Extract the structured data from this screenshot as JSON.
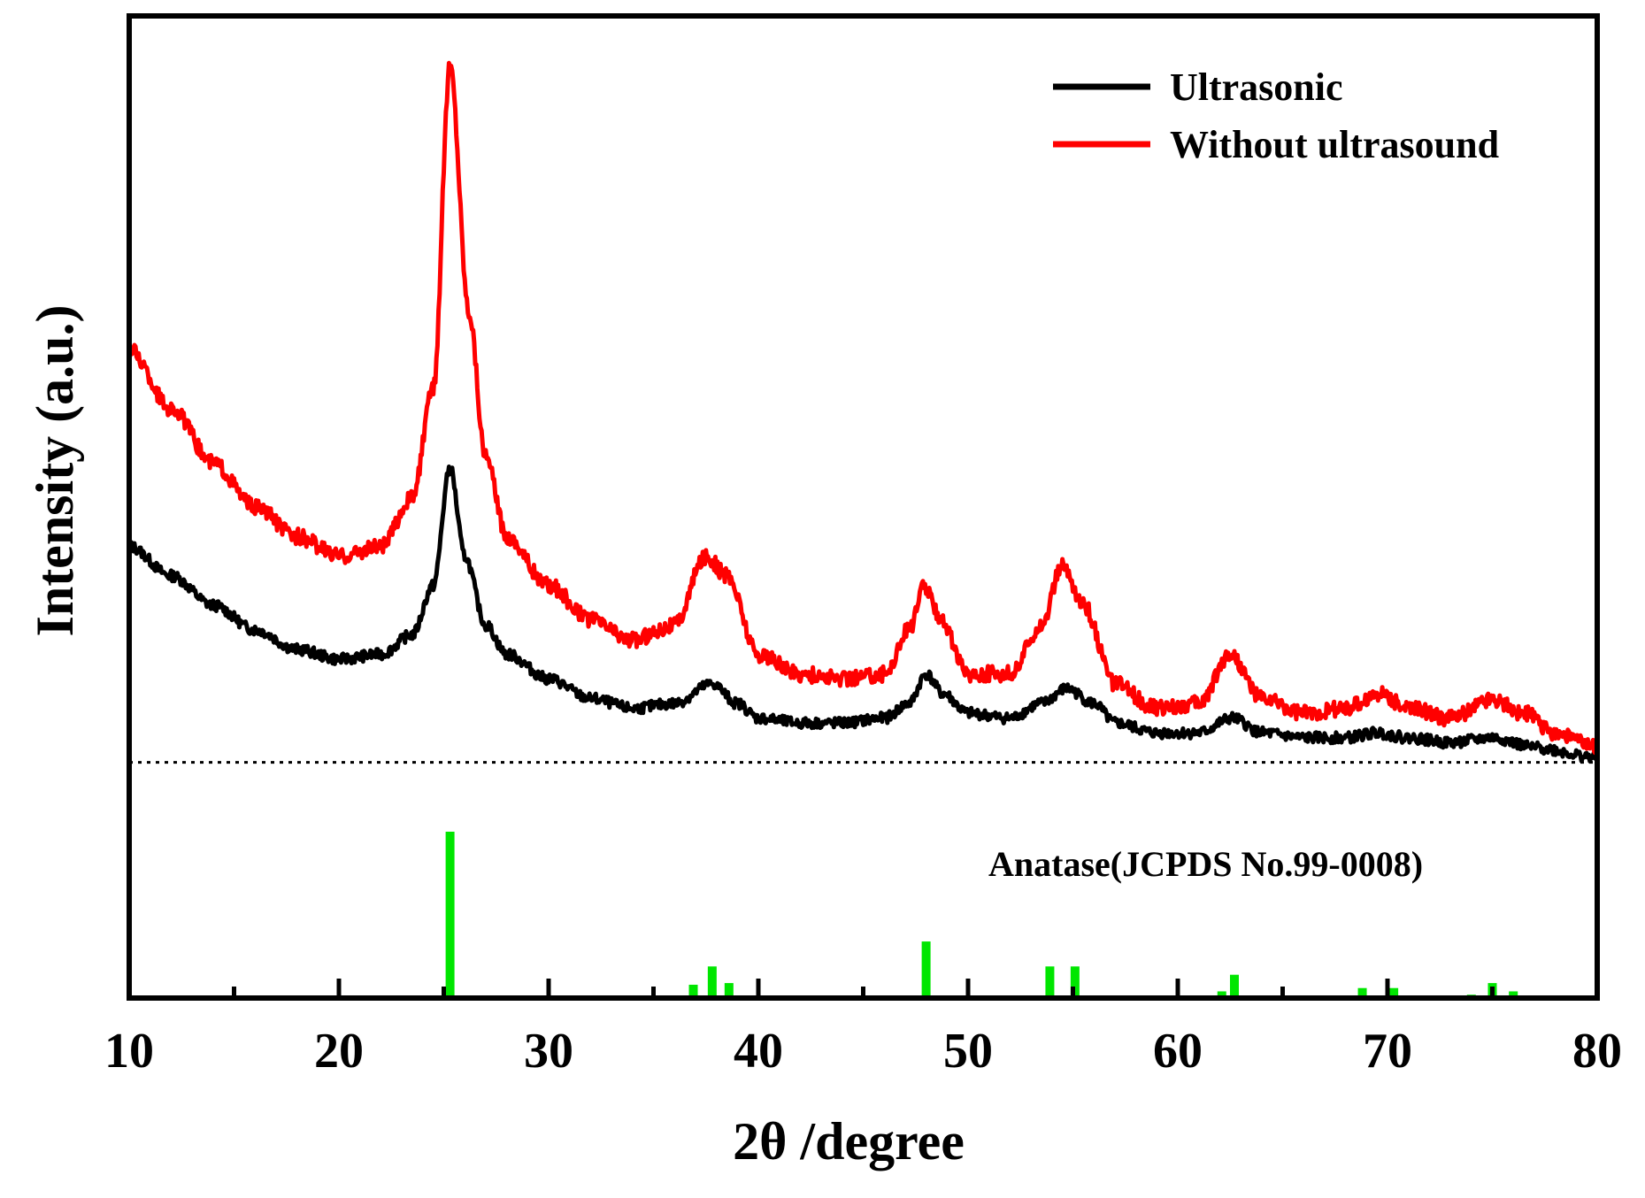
{
  "chart_data": {
    "type": "line",
    "title": "",
    "xlabel": "2θ /degree",
    "ylabel": "Intensity (a.u.)",
    "xlim": [
      10,
      80
    ],
    "ylim": [
      0,
      100
    ],
    "x_major_ticks": [
      10,
      20,
      30,
      40,
      50,
      60,
      70,
      80
    ],
    "x_minor_ticks": [
      15,
      25,
      35,
      45,
      55,
      65,
      75
    ],
    "legend_position": "top-right",
    "separator_level": 24,
    "series": [
      {
        "name": "Ultrasonic",
        "color": "#000000",
        "points": [
          [
            10,
            46
          ],
          [
            12,
            43
          ],
          [
            14,
            40
          ],
          [
            16,
            37.5
          ],
          [
            18,
            35.5
          ],
          [
            20,
            34.5
          ],
          [
            22,
            35
          ],
          [
            23.5,
            37
          ],
          [
            24.5,
            42
          ],
          [
            25.3,
            54
          ],
          [
            26,
            45
          ],
          [
            27,
            38
          ],
          [
            28,
            35
          ],
          [
            30,
            32.5
          ],
          [
            32,
            30.5
          ],
          [
            34,
            29.5
          ],
          [
            36,
            30
          ],
          [
            37.8,
            32
          ],
          [
            39,
            30
          ],
          [
            40,
            28.5
          ],
          [
            42,
            28
          ],
          [
            44,
            28
          ],
          [
            46,
            28.5
          ],
          [
            47.2,
            30
          ],
          [
            48,
            33
          ],
          [
            48.8,
            31
          ],
          [
            50,
            29
          ],
          [
            52,
            28.5
          ],
          [
            53.5,
            30
          ],
          [
            54.7,
            31.5
          ],
          [
            56,
            30
          ],
          [
            57,
            28
          ],
          [
            59,
            27
          ],
          [
            61,
            27
          ],
          [
            62.6,
            28.5
          ],
          [
            64,
            27
          ],
          [
            66,
            26.5
          ],
          [
            68,
            26.5
          ],
          [
            69.5,
            27
          ],
          [
            71,
            26.5
          ],
          [
            73,
            26
          ],
          [
            75,
            26.5
          ],
          [
            77,
            25.5
          ],
          [
            80,
            24.5
          ]
        ]
      },
      {
        "name": "Without ultrasound",
        "color": "#ff0000",
        "points": [
          [
            10,
            66
          ],
          [
            12,
            60
          ],
          [
            14,
            54.5
          ],
          [
            16,
            50
          ],
          [
            18,
            47
          ],
          [
            20,
            45
          ],
          [
            22,
            46
          ],
          [
            23.5,
            51
          ],
          [
            24.5,
            62
          ],
          [
            25.3,
            95
          ],
          [
            26.2,
            70
          ],
          [
            27,
            55
          ],
          [
            28,
            47
          ],
          [
            30,
            42
          ],
          [
            32,
            38.5
          ],
          [
            34,
            36.5
          ],
          [
            36,
            38
          ],
          [
            37.5,
            45
          ],
          [
            38.5,
            43
          ],
          [
            40,
            35
          ],
          [
            42,
            33
          ],
          [
            44,
            32.5
          ],
          [
            46,
            33
          ],
          [
            47.3,
            38
          ],
          [
            47.9,
            42
          ],
          [
            48.6,
            39
          ],
          [
            50,
            33
          ],
          [
            52,
            33
          ],
          [
            53.5,
            38
          ],
          [
            54.5,
            44
          ],
          [
            55.5,
            40
          ],
          [
            57,
            32
          ],
          [
            59,
            29.5
          ],
          [
            61,
            30
          ],
          [
            62.5,
            35
          ],
          [
            64,
            30.5
          ],
          [
            66,
            29
          ],
          [
            68,
            29.5
          ],
          [
            69.7,
            31
          ],
          [
            71,
            29.5
          ],
          [
            73,
            28.5
          ],
          [
            75,
            30.5
          ],
          [
            76.5,
            29
          ],
          [
            78,
            27
          ],
          [
            80,
            25.5
          ]
        ]
      }
    ],
    "reference": {
      "label": "Anatase(JCPDS No.99-0008)",
      "color": "#00e600",
      "peaks": [
        [
          25.3,
          100
        ],
        [
          36.9,
          8
        ],
        [
          37.8,
          19
        ],
        [
          38.6,
          9
        ],
        [
          48.0,
          34
        ],
        [
          53.9,
          19
        ],
        [
          55.1,
          19
        ],
        [
          62.1,
          4
        ],
        [
          62.7,
          14
        ],
        [
          68.8,
          6
        ],
        [
          70.3,
          6
        ],
        [
          74.0,
          2
        ],
        [
          75.0,
          9
        ],
        [
          76.0,
          4
        ]
      ]
    }
  }
}
